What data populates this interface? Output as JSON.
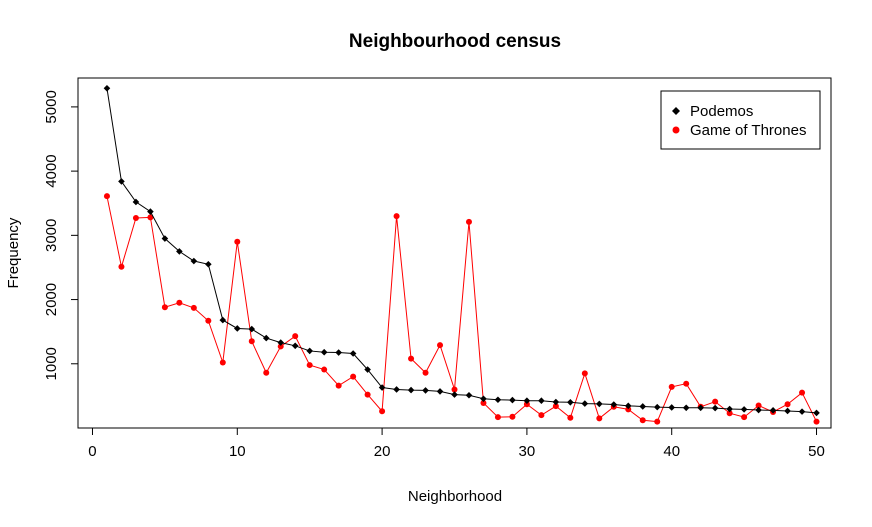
{
  "chart_data": {
    "type": "line",
    "title": "Neighbourhood census",
    "xlabel": "Neighborhood",
    "ylabel": "Frequency",
    "xlim": [
      -1,
      51
    ],
    "ylim": [
      0,
      5450
    ],
    "x_ticks": [
      0,
      10,
      20,
      30,
      40,
      50
    ],
    "y_ticks": [
      1000,
      2000,
      3000,
      4000,
      5000
    ],
    "legend_position": "top-right",
    "x": [
      1,
      2,
      3,
      4,
      5,
      6,
      7,
      8,
      9,
      10,
      11,
      12,
      13,
      14,
      15,
      16,
      17,
      18,
      19,
      20,
      21,
      22,
      23,
      24,
      25,
      26,
      27,
      28,
      29,
      30,
      31,
      32,
      33,
      34,
      35,
      36,
      37,
      38,
      39,
      40,
      41,
      42,
      43,
      44,
      45,
      46,
      47,
      48,
      49,
      50
    ],
    "series": [
      {
        "name": "Podemos",
        "color": "#000000",
        "marker": "diamond",
        "values": [
          5290,
          3840,
          3520,
          3370,
          2950,
          2750,
          2600,
          2550,
          1680,
          1550,
          1540,
          1400,
          1330,
          1280,
          1200,
          1180,
          1175,
          1160,
          910,
          630,
          600,
          590,
          585,
          570,
          520,
          510,
          455,
          440,
          435,
          425,
          425,
          405,
          400,
          380,
          375,
          365,
          345,
          335,
          325,
          320,
          315,
          315,
          310,
          295,
          290,
          280,
          275,
          265,
          255,
          235
        ],
        "label": "Podemos"
      },
      {
        "name": "Game of Thrones",
        "color": "#ff0000",
        "marker": "circle",
        "values": [
          3610,
          2510,
          3270,
          3280,
          1880,
          1950,
          1870,
          1670,
          1020,
          2900,
          1350,
          860,
          1270,
          1430,
          980,
          910,
          660,
          800,
          520,
          260,
          3300,
          1080,
          860,
          1290,
          600,
          3210,
          390,
          170,
          175,
          370,
          200,
          340,
          160,
          850,
          150,
          330,
          290,
          120,
          100,
          640,
          690,
          330,
          410,
          230,
          170,
          350,
          250,
          370,
          550,
          100
        ],
        "label": "Game of Thrones"
      }
    ]
  }
}
